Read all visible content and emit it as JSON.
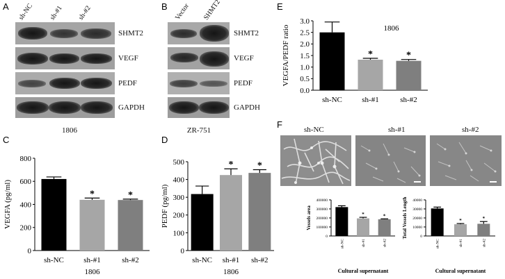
{
  "panels": {
    "A": {
      "letter": "A",
      "lanes": [
        "sh-NC",
        "sh-#1",
        "sh-#2"
      ],
      "rows": [
        "SHMT2",
        "VEGF",
        "PEDF",
        "GAPDH"
      ],
      "caption": "1806"
    },
    "B": {
      "letter": "B",
      "lanes": [
        "Vector",
        "SHMT2"
      ],
      "rows": [
        "SHMT2",
        "VEGF",
        "PEDF",
        "GAPDH"
      ],
      "caption": "ZR-751"
    },
    "C": {
      "letter": "C"
    },
    "D": {
      "letter": "D"
    },
    "E": {
      "letter": "E"
    },
    "F": {
      "letter": "F",
      "images": [
        "sh-NC",
        "sh-#1",
        "sh-#2"
      ]
    }
  },
  "chart_data": [
    {
      "id": "C",
      "type": "bar",
      "categories": [
        "sh-NC",
        "sh-#1",
        "sh-#2"
      ],
      "values": [
        620,
        440,
        438
      ],
      "errors": [
        18,
        15,
        8
      ],
      "significance": [
        "",
        "*",
        "*"
      ],
      "colors": [
        "#000000",
        "#a6a6a6",
        "#7f7f7f"
      ],
      "ylabel": "VEGFA (pg/ml)",
      "xlabel": "1806",
      "ylim": [
        0,
        800
      ],
      "yticks": [
        0,
        200,
        400,
        600,
        800
      ]
    },
    {
      "id": "D",
      "type": "bar",
      "categories": [
        "sh-NC",
        "sh-#1",
        "sh-#2"
      ],
      "values": [
        318,
        425,
        437
      ],
      "errors": [
        45,
        35,
        18
      ],
      "significance": [
        "",
        "*",
        "*"
      ],
      "colors": [
        "#000000",
        "#a6a6a6",
        "#7f7f7f"
      ],
      "ylabel": "PEDF (pg/ml)",
      "xlabel": "1806",
      "ylim": [
        0,
        500
      ],
      "yticks": [
        0,
        100,
        200,
        300,
        400,
        500
      ]
    },
    {
      "id": "E",
      "type": "bar",
      "categories": [
        "sh-NC",
        "sh-#1",
        "sh-#2"
      ],
      "values": [
        2.5,
        1.32,
        1.27
      ],
      "errors": [
        0.45,
        0.06,
        0.06
      ],
      "significance": [
        "",
        "*",
        "*"
      ],
      "colors": [
        "#000000",
        "#a6a6a6",
        "#7f7f7f"
      ],
      "ylabel": "VEGFA/PEDF ratio",
      "title": "1806",
      "ylim": [
        0,
        3.0
      ],
      "yticks": [
        0.0,
        0.5,
        1.0,
        1.5,
        2.0,
        2.5,
        3.0
      ],
      "tick_format": "fixed1"
    },
    {
      "id": "F-area",
      "type": "bar",
      "categories": [
        "sh-NC",
        "sh-#1",
        "sh-#2"
      ],
      "values": [
        320000,
        195000,
        185000
      ],
      "errors": [
        15000,
        12000,
        5000
      ],
      "significance": [
        "",
        "*",
        "*"
      ],
      "colors": [
        "#000000",
        "#a6a6a6",
        "#7f7f7f"
      ],
      "ylabel": "Vessels area",
      "xlabel": "Cultural supernatant",
      "ylim": [
        0,
        400000
      ],
      "yticks": [
        0,
        100000,
        200000,
        300000,
        400000
      ]
    },
    {
      "id": "F-length",
      "type": "bar",
      "categories": [
        "sh-NC",
        "sh-#1",
        "sh-#2"
      ],
      "values": [
        30500,
        13000,
        13500
      ],
      "errors": [
        1500,
        800,
        2500
      ],
      "significance": [
        "",
        "*",
        "*"
      ],
      "colors": [
        "#000000",
        "#a6a6a6",
        "#7f7f7f"
      ],
      "ylabel": "Total Vessels Length",
      "xlabel": "Cultural supernatant",
      "ylim": [
        0,
        40000
      ],
      "yticks": [
        0,
        10000,
        20000,
        30000,
        40000
      ]
    }
  ]
}
